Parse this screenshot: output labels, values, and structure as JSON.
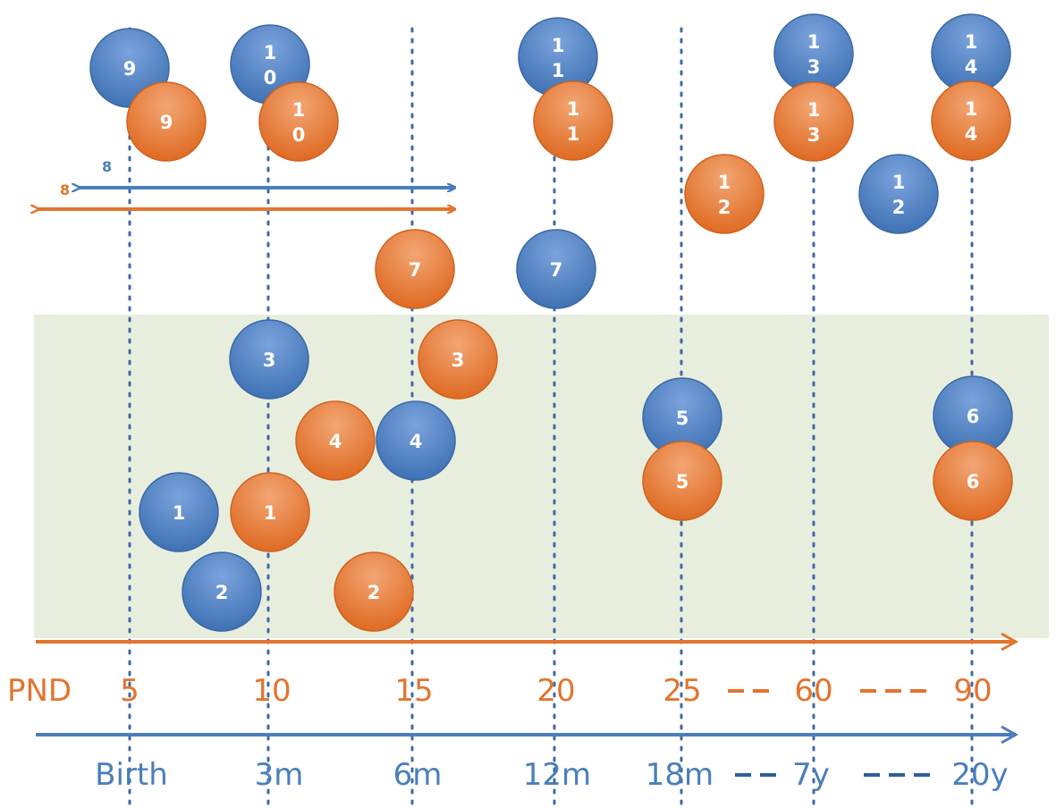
{
  "colors": {
    "blue": "#4a7ebb",
    "blue_light": "#7ba3dc",
    "orange": "#e3742d",
    "orange_light": "#f0a77e",
    "zone": "#e8eedd",
    "dotted_line": "#3e69a6",
    "dash": "#2e5f9c"
  },
  "pnd_axis": {
    "label": "PND",
    "ticks": [
      "5",
      "10",
      "15",
      "20",
      "25",
      "60",
      "90"
    ]
  },
  "human_axis": {
    "ticks": [
      "Birth",
      "3m",
      "6m",
      "12m",
      "18m",
      "7y",
      "20y"
    ]
  },
  "range_arrows": {
    "blue_label": "8",
    "orange_label": "8"
  },
  "circles": [
    {
      "id": "blue-9",
      "color": "blue",
      "lines": [
        "9"
      ]
    },
    {
      "id": "orange-9",
      "color": "orange",
      "lines": [
        "9"
      ]
    },
    {
      "id": "blue-10",
      "color": "blue",
      "lines": [
        "1",
        "0"
      ]
    },
    {
      "id": "orange-10",
      "color": "orange",
      "lines": [
        "1",
        "0"
      ]
    },
    {
      "id": "blue-11",
      "color": "blue",
      "lines": [
        "1",
        "1"
      ]
    },
    {
      "id": "orange-11",
      "color": "orange",
      "lines": [
        "1",
        "1"
      ]
    },
    {
      "id": "blue-13",
      "color": "blue",
      "lines": [
        "1",
        "3"
      ]
    },
    {
      "id": "orange-13",
      "color": "orange",
      "lines": [
        "1",
        "3"
      ]
    },
    {
      "id": "blue-14",
      "color": "blue",
      "lines": [
        "1",
        "4"
      ]
    },
    {
      "id": "orange-14",
      "color": "orange",
      "lines": [
        "1",
        "4"
      ]
    },
    {
      "id": "orange-12",
      "color": "orange",
      "lines": [
        "1",
        "2"
      ]
    },
    {
      "id": "blue-12",
      "color": "blue",
      "lines": [
        "1",
        "2"
      ]
    },
    {
      "id": "orange-7",
      "color": "orange",
      "lines": [
        "7"
      ]
    },
    {
      "id": "blue-7",
      "color": "blue",
      "lines": [
        "7"
      ]
    },
    {
      "id": "blue-3",
      "color": "blue",
      "lines": [
        "3"
      ]
    },
    {
      "id": "orange-3",
      "color": "orange",
      "lines": [
        "3"
      ]
    },
    {
      "id": "orange-4",
      "color": "orange",
      "lines": [
        "4"
      ]
    },
    {
      "id": "blue-4",
      "color": "blue",
      "lines": [
        "4"
      ]
    },
    {
      "id": "blue-5",
      "color": "blue",
      "lines": [
        "5"
      ]
    },
    {
      "id": "orange-5",
      "color": "orange",
      "lines": [
        "5"
      ]
    },
    {
      "id": "blue-6",
      "color": "blue",
      "lines": [
        "6"
      ]
    },
    {
      "id": "orange-6",
      "color": "orange",
      "lines": [
        "6"
      ]
    },
    {
      "id": "blue-1",
      "color": "blue",
      "lines": [
        "1"
      ]
    },
    {
      "id": "orange-1",
      "color": "orange",
      "lines": [
        "1"
      ]
    },
    {
      "id": "blue-2",
      "color": "blue",
      "lines": [
        "2"
      ]
    },
    {
      "id": "orange-2",
      "color": "orange",
      "lines": [
        "2"
      ]
    }
  ]
}
